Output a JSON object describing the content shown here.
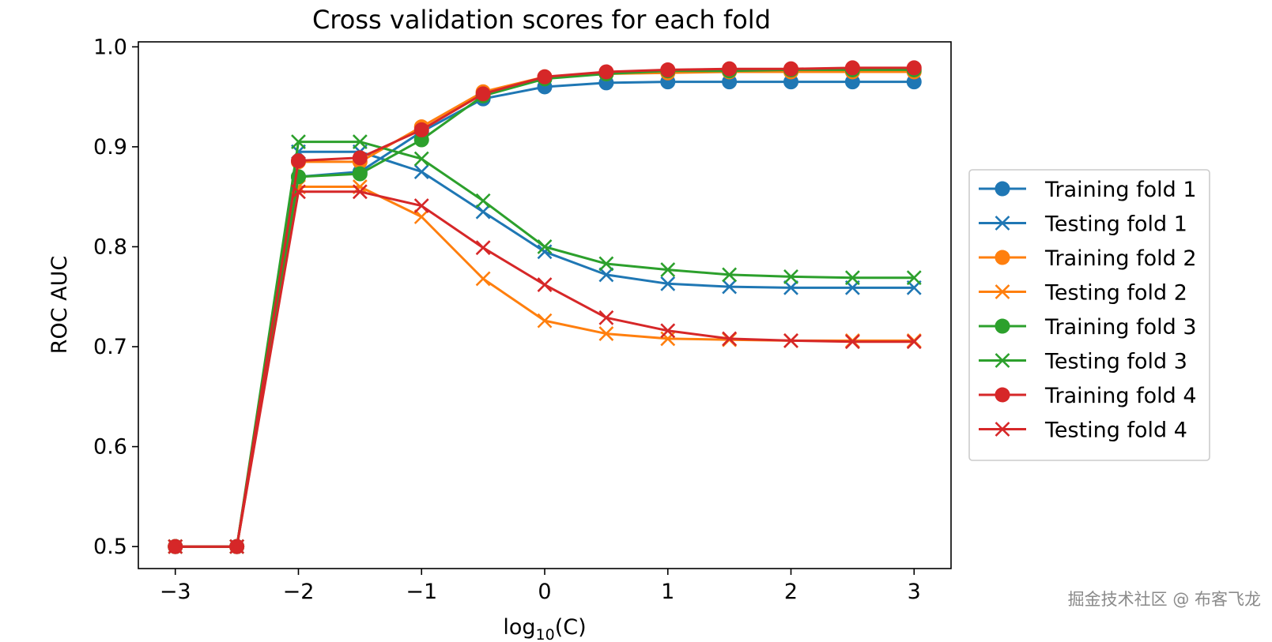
{
  "chart_data": {
    "type": "line",
    "title": "Cross validation scores for each fold",
    "xlabel_base": "log",
    "xlabel_sub": "10",
    "xlabel_arg": "(C)",
    "ylabel": "ROC AUC",
    "xlim": [
      -3.3,
      3.3
    ],
    "ylim": [
      0.478,
      1.005
    ],
    "x_ticks": [
      -3,
      -2,
      -1,
      0,
      1,
      2,
      3
    ],
    "x_tick_labels": [
      "−3",
      "−2",
      "−1",
      "0",
      "1",
      "2",
      "3"
    ],
    "y_ticks": [
      0.5,
      0.6,
      0.7,
      0.8,
      0.9,
      1.0
    ],
    "y_tick_labels": [
      "0.5",
      "0.6",
      "0.7",
      "0.8",
      "0.9",
      "1.0"
    ],
    "legend_position": "outside-right",
    "x": [
      -3,
      -2.5,
      -2,
      -1.5,
      -1,
      -0.5,
      0,
      0.5,
      1,
      1.5,
      2,
      2.5,
      3
    ],
    "series": [
      {
        "name": "Training fold 1",
        "color": "#1f77b4",
        "marker": "circle",
        "values": [
          0.5,
          0.5,
          0.87,
          0.875,
          0.915,
          0.948,
          0.96,
          0.964,
          0.965,
          0.965,
          0.965,
          0.965,
          0.965
        ]
      },
      {
        "name": "Testing fold 1",
        "color": "#1f77b4",
        "marker": "x",
        "values": [
          0.5,
          0.5,
          0.895,
          0.895,
          0.875,
          0.835,
          0.795,
          0.772,
          0.763,
          0.76,
          0.759,
          0.759,
          0.759
        ]
      },
      {
        "name": "Training fold 2",
        "color": "#ff7f0e",
        "marker": "circle",
        "values": [
          0.5,
          0.5,
          0.885,
          0.885,
          0.92,
          0.955,
          0.97,
          0.973,
          0.974,
          0.975,
          0.975,
          0.975,
          0.975
        ]
      },
      {
        "name": "Testing fold 2",
        "color": "#ff7f0e",
        "marker": "x",
        "values": [
          0.5,
          0.5,
          0.86,
          0.86,
          0.83,
          0.768,
          0.726,
          0.713,
          0.708,
          0.707,
          0.706,
          0.706,
          0.706
        ]
      },
      {
        "name": "Training fold 3",
        "color": "#2ca02c",
        "marker": "circle",
        "values": [
          0.5,
          0.5,
          0.87,
          0.873,
          0.907,
          0.951,
          0.968,
          0.973,
          0.976,
          0.976,
          0.977,
          0.977,
          0.977
        ]
      },
      {
        "name": "Testing fold 3",
        "color": "#2ca02c",
        "marker": "x",
        "values": [
          0.5,
          0.5,
          0.905,
          0.905,
          0.888,
          0.846,
          0.8,
          0.783,
          0.777,
          0.772,
          0.77,
          0.769,
          0.769
        ]
      },
      {
        "name": "Training fold 4",
        "color": "#d62728",
        "marker": "circle",
        "values": [
          0.5,
          0.5,
          0.886,
          0.889,
          0.917,
          0.953,
          0.97,
          0.975,
          0.977,
          0.978,
          0.978,
          0.979,
          0.979
        ]
      },
      {
        "name": "Testing fold 4",
        "color": "#d62728",
        "marker": "x",
        "values": [
          0.5,
          0.5,
          0.855,
          0.855,
          0.841,
          0.799,
          0.762,
          0.729,
          0.716,
          0.708,
          0.706,
          0.705,
          0.705
        ]
      }
    ]
  },
  "watermark": "掘金技术社区 @ 布客飞龙"
}
